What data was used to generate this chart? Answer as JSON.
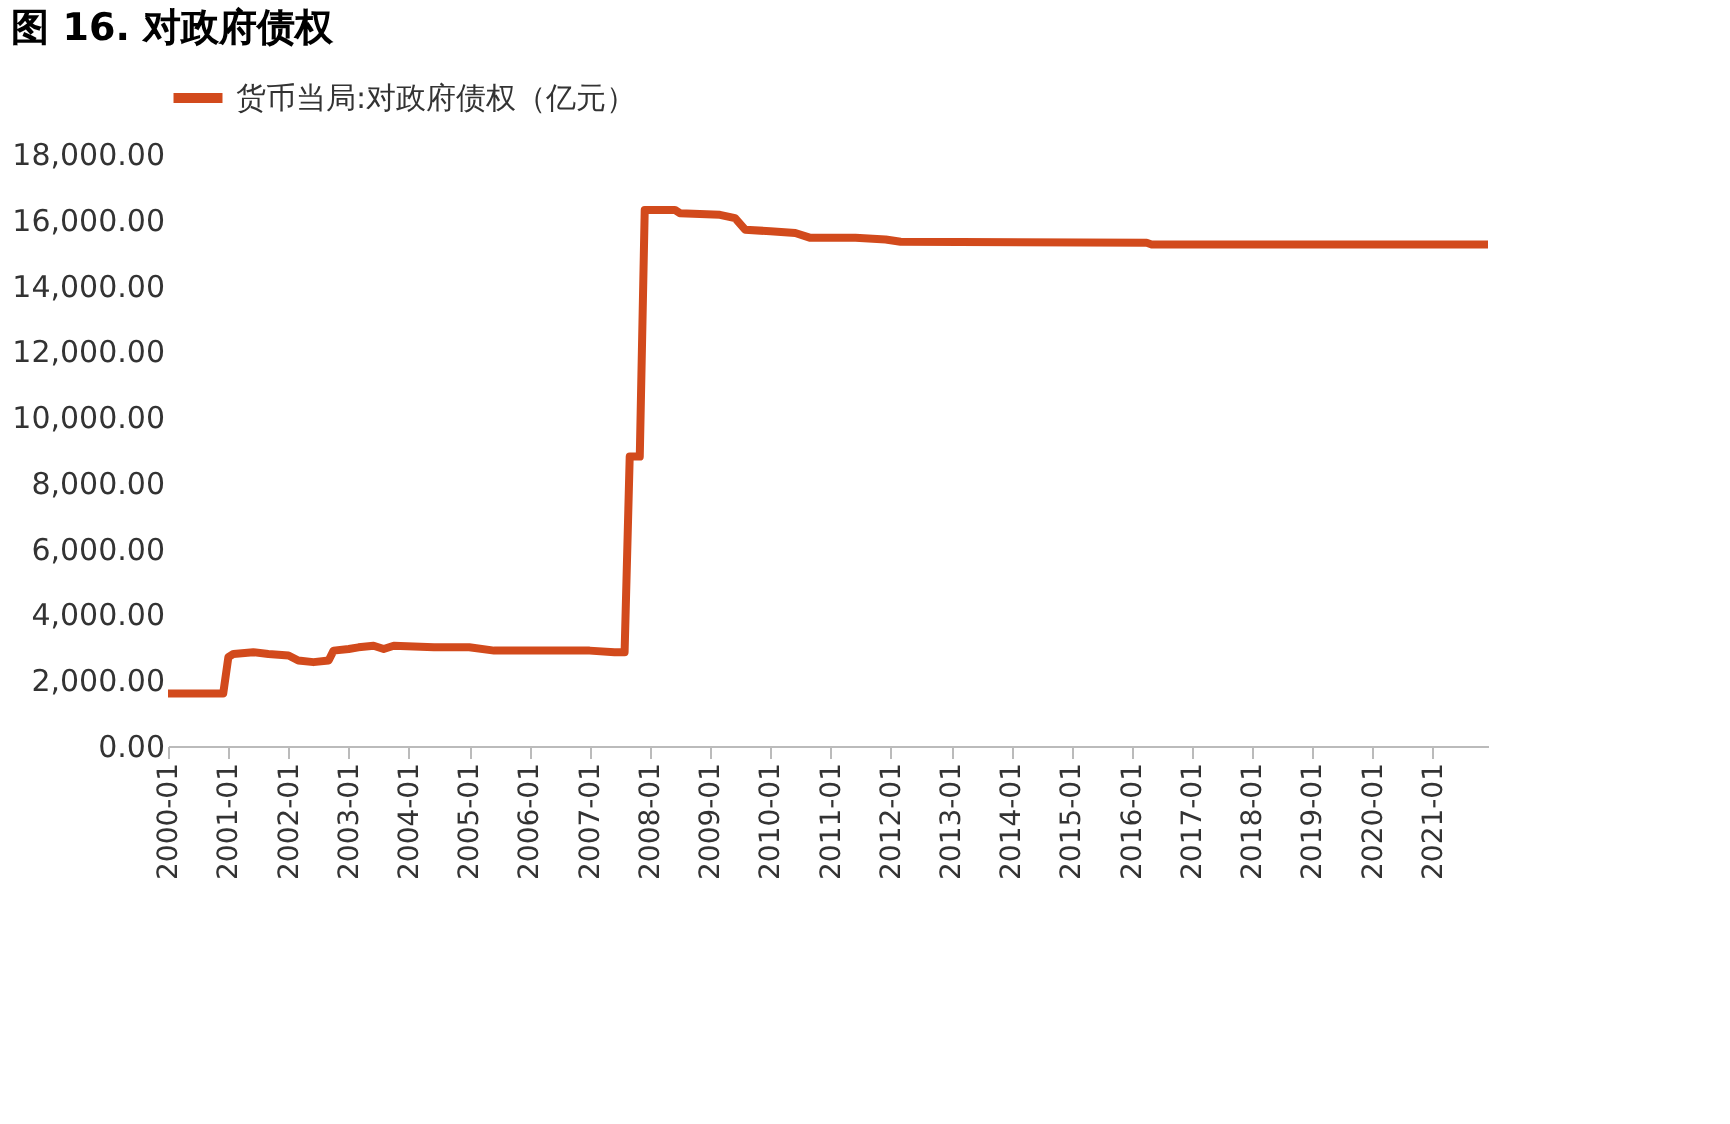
{
  "chart_data": {
    "type": "line",
    "title": "图 16. 对政府债权",
    "x": [
      "2000-01",
      "2000-12",
      "2001-01",
      "2001-02",
      "2001-06",
      "2001-09",
      "2002-01",
      "2002-03",
      "2002-06",
      "2002-09",
      "2002-10",
      "2003-01",
      "2003-03",
      "2003-06",
      "2003-08",
      "2003-10",
      "2004-06",
      "2005-01",
      "2005-06",
      "2006-01",
      "2007-01",
      "2007-06",
      "2007-08",
      "2007-09",
      "2007-11",
      "2007-12",
      "2008-06",
      "2008-07",
      "2009-03",
      "2009-06",
      "2009-08",
      "2010-01",
      "2010-06",
      "2010-09",
      "2011-06",
      "2011-12",
      "2012-03",
      "2016-04",
      "2016-05",
      "2021-12"
    ],
    "series": [
      {
        "name": "货币当局:对政府债权（亿元）",
        "color": "#d24a1c",
        "values": [
          1600,
          1600,
          2700,
          2800,
          2850,
          2800,
          2750,
          2600,
          2550,
          2600,
          2900,
          2950,
          3000,
          3050,
          2950,
          3050,
          3000,
          3000,
          2900,
          2900,
          2900,
          2850,
          2850,
          8800,
          8800,
          16300,
          16300,
          16200,
          16150,
          16050,
          15700,
          15650,
          15600,
          15450,
          15450,
          15400,
          15330,
          15300,
          15250,
          15250
        ]
      }
    ],
    "xlim": [
      "2000-01",
      "2021-12"
    ],
    "xticks": [
      "2000-01",
      "2001-01",
      "2002-01",
      "2003-01",
      "2004-01",
      "2005-01",
      "2006-01",
      "2007-01",
      "2008-01",
      "2009-01",
      "2010-01",
      "2011-01",
      "2012-01",
      "2013-01",
      "2014-01",
      "2015-01",
      "2016-01",
      "2017-01",
      "2018-01",
      "2019-01",
      "2020-01",
      "2021-01"
    ],
    "ylim": [
      0,
      18000
    ],
    "yticks": [
      {
        "value": 0,
        "label": "0.00"
      },
      {
        "value": 2000,
        "label": "2,000.00"
      },
      {
        "value": 4000,
        "label": "4,000.00"
      },
      {
        "value": 6000,
        "label": "6,000.00"
      },
      {
        "value": 8000,
        "label": "8,000.00"
      },
      {
        "value": 10000,
        "label": "10,000.00"
      },
      {
        "value": 12000,
        "label": "12,000.00"
      },
      {
        "value": 14000,
        "label": "14,000.00"
      },
      {
        "value": 16000,
        "label": "16,000.00"
      },
      {
        "value": 18000,
        "label": "18,000.00"
      }
    ],
    "grid": false,
    "legend": "top",
    "marker": "none",
    "line_style": "solid"
  }
}
